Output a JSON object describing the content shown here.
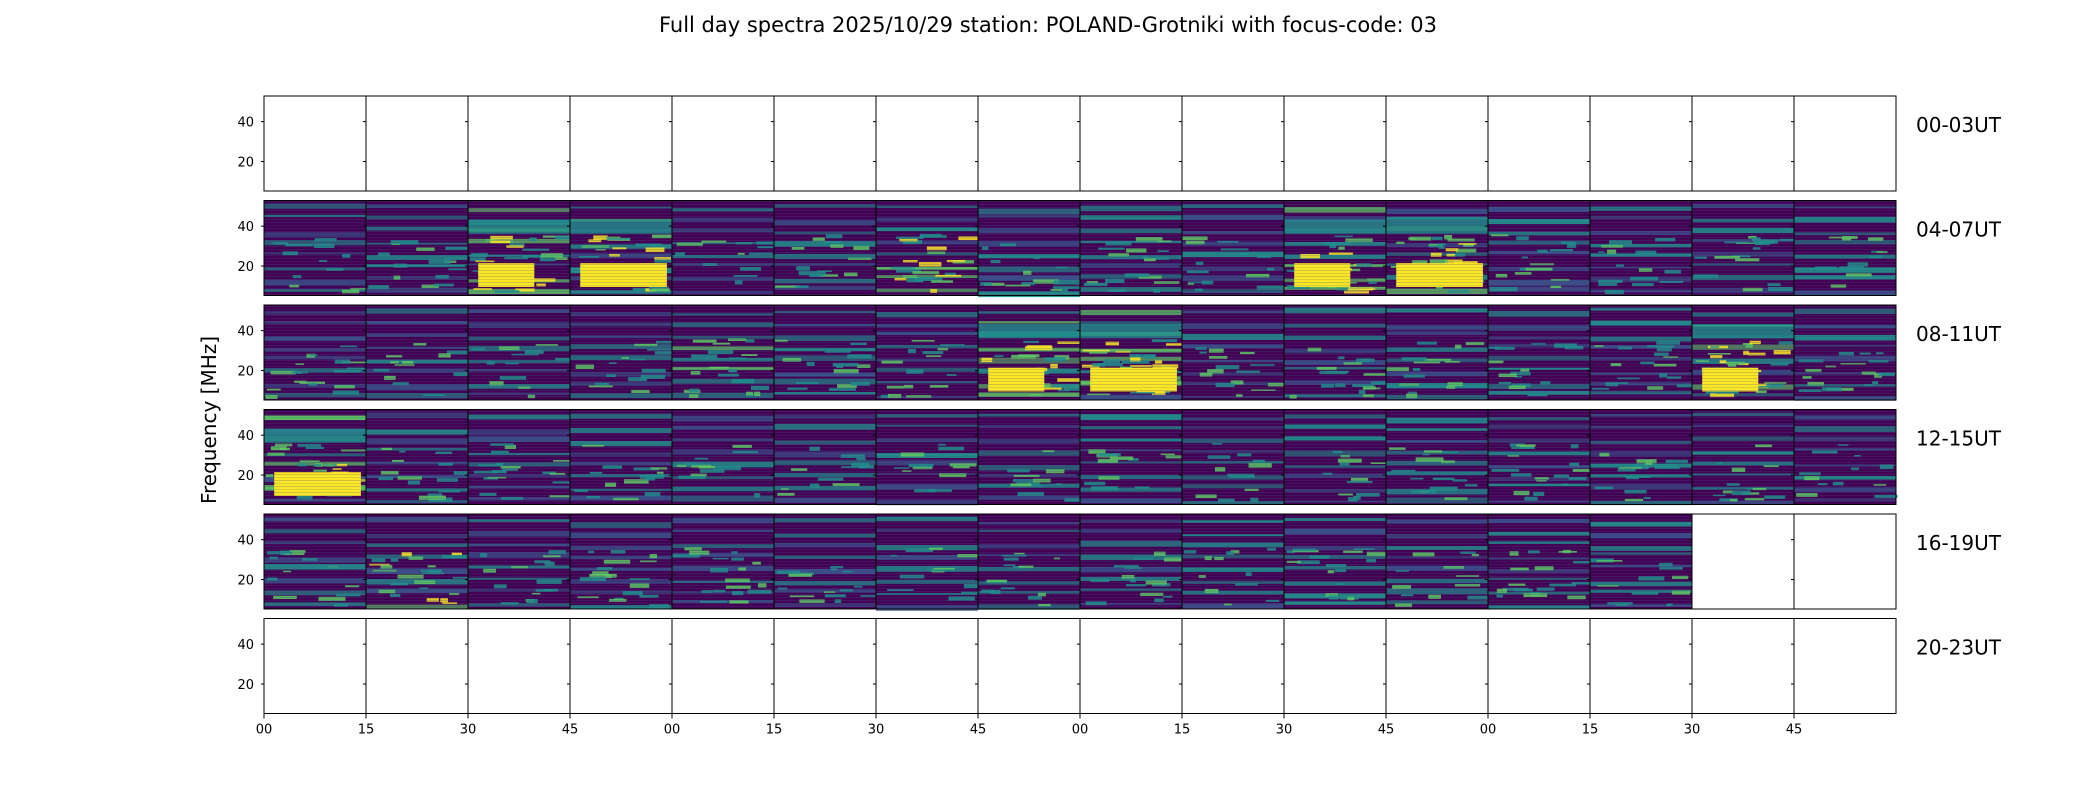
{
  "chart_data": {
    "type": "heatmap",
    "title": "Full day spectra 2025/10/29 station: POLAND-Grotniki with focus-code: 03",
    "ylabel": "Frequency [MHz]",
    "xlabel": "",
    "yticks": [
      "40",
      "20"
    ],
    "xticks": [
      "00",
      "15",
      "30",
      "45",
      "00",
      "15",
      "30",
      "45",
      "00",
      "15",
      "30",
      "45",
      "00",
      "15",
      "30",
      "45"
    ],
    "panels_per_row": 16,
    "colormap": [
      "#440154",
      "#3b528b",
      "#21918c",
      "#5ec962",
      "#fde725"
    ],
    "rows": [
      {
        "label": "00-03UT",
        "panels": [
          0,
          0,
          0,
          0,
          0,
          0,
          0,
          0,
          0,
          0,
          0,
          0,
          0,
          0,
          0,
          0
        ]
      },
      {
        "label": "04-07UT",
        "panels": [
          1,
          1,
          1,
          1,
          1,
          1,
          1,
          1,
          1,
          1,
          1,
          1,
          1,
          1,
          1,
          1
        ],
        "intensity": [
          2,
          3,
          7,
          9,
          2,
          3,
          6,
          3,
          4,
          3,
          7,
          9,
          3,
          3,
          4,
          2
        ]
      },
      {
        "label": "08-11UT",
        "panels": [
          1,
          1,
          1,
          1,
          1,
          1,
          1,
          1,
          1,
          1,
          1,
          1,
          1,
          1,
          1,
          1
        ],
        "intensity": [
          4,
          2,
          2,
          3,
          5,
          3,
          3,
          7,
          9,
          3,
          4,
          3,
          3,
          4,
          8,
          4
        ]
      },
      {
        "label": "12-15UT",
        "panels": [
          1,
          1,
          1,
          1,
          1,
          1,
          1,
          1,
          1,
          1,
          1,
          1,
          1,
          1,
          1,
          1
        ],
        "intensity": [
          9,
          3,
          4,
          3,
          2,
          2,
          2,
          2,
          2,
          2,
          2,
          3,
          4,
          3,
          3,
          2
        ]
      },
      {
        "label": "16-19UT",
        "panels": [
          1,
          1,
          1,
          1,
          1,
          1,
          1,
          1,
          1,
          1,
          1,
          1,
          1,
          1,
          0,
          0
        ],
        "intensity": [
          3,
          6,
          3,
          4,
          4,
          3,
          2,
          3,
          3,
          2,
          4,
          2,
          4,
          2,
          0,
          0
        ]
      },
      {
        "label": "20-23UT",
        "panels": [
          0,
          0,
          0,
          0,
          0,
          0,
          0,
          0,
          0,
          0,
          0,
          0,
          0,
          0,
          0,
          0
        ]
      }
    ]
  }
}
